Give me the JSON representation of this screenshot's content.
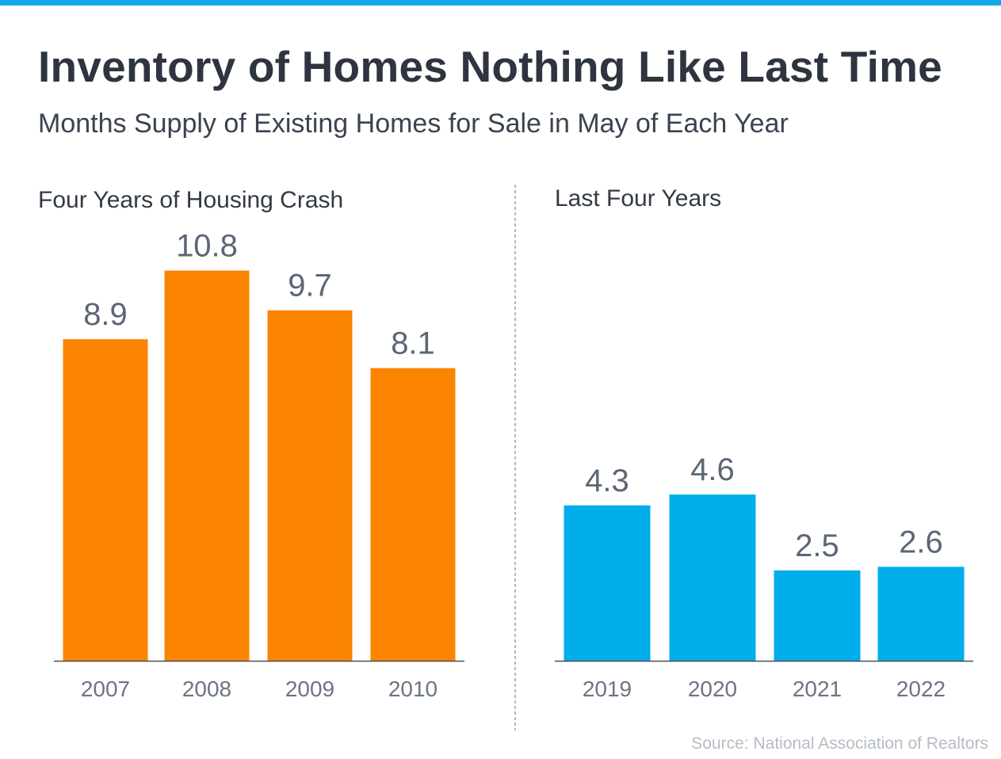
{
  "header": {
    "title": "Inventory of Homes Nothing Like Last Time",
    "subtitle": "Months Supply of Existing Homes for Sale in May of Each Year"
  },
  "source": "Source: National Association of Realtors",
  "colors": {
    "accent_bar": "#15a9ec",
    "crash": "#fb8500",
    "recent": "#00aeeb"
  },
  "chart_data": [
    {
      "type": "bar",
      "title": "Four Years of Housing Crash",
      "categories": [
        "2007",
        "2008",
        "2009",
        "2010"
      ],
      "values": [
        8.9,
        10.8,
        9.7,
        8.1
      ],
      "color": "#fb8500",
      "data_labels": true,
      "grid": false
    },
    {
      "type": "bar",
      "title": "Last Four Years",
      "categories": [
        "2019",
        "2020",
        "2021",
        "2022"
      ],
      "values": [
        4.3,
        4.6,
        2.5,
        2.6
      ],
      "color": "#00aeeb",
      "data_labels": true,
      "grid": false
    }
  ]
}
